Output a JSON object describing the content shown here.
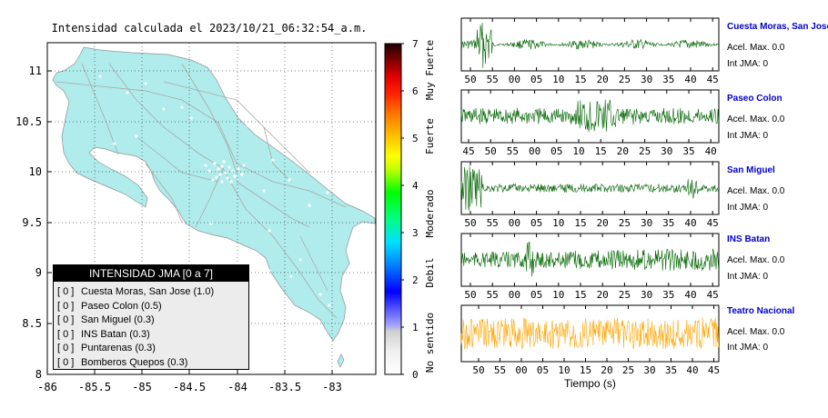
{
  "title": "Intensidad calculada el 2023/10/21_06:32:54_a.m.",
  "map": {
    "lat_ticks": [
      "11",
      "10.5",
      "10",
      "9.5",
      "9",
      "8.5",
      "8"
    ],
    "lon_ticks": [
      "-86",
      "-85.5",
      "-85",
      "-84.5",
      "-84",
      "-83.5",
      "-83"
    ],
    "land_color": "#b0ecec",
    "ocean_color": "#ffffff"
  },
  "legend": {
    "title": "INTENSIDAD JMA [0 a 7]",
    "rows": [
      {
        "value": "[ 0 ]",
        "label": "Cuesta Moras, San Jose (1.0)"
      },
      {
        "value": "[ 0 ]",
        "label": "Paseo Colon (0.5)"
      },
      {
        "value": "[ 0 ]",
        "label": "San Miguel (0.3)"
      },
      {
        "value": "[ 0 ]",
        "label": "INS Batan (0.3)"
      },
      {
        "value": "[ 0 ]",
        "label": "Puntarenas (0.3)"
      },
      {
        "value": "[ 0 ]",
        "label": "Bomberos Quepos (0.3)"
      }
    ]
  },
  "colorbar": {
    "ticks": [
      "7",
      "6",
      "5",
      "4",
      "3",
      "2",
      "1",
      "0"
    ],
    "labels": [
      "Muy Fuerte",
      "Fuerte",
      "Moderado",
      "Debil",
      "No sentido"
    ]
  },
  "stations": [
    {
      "name": "Cuesta Moras, San Jose",
      "acel": "Acel. Max. 0.0",
      "jma": "Int JMA: 0",
      "color": "#006400",
      "xticks": [
        "50",
        "55",
        "00",
        "05",
        "10",
        "15",
        "20",
        "25",
        "30",
        "35",
        "40",
        "45"
      ]
    },
    {
      "name": "Paseo Colon",
      "acel": "Acel. Max. 0.0",
      "jma": "Int JMA: 0",
      "color": "#006400",
      "xticks": [
        "45",
        "50",
        "55",
        "00",
        "05",
        "10",
        "15",
        "20",
        "25",
        "30",
        "35",
        "40"
      ]
    },
    {
      "name": "San Miguel",
      "acel": "Acel. Max. 0.0",
      "jma": "Int JMA: 0",
      "color": "#006400",
      "xticks": [
        "50",
        "55",
        "00",
        "05",
        "10",
        "15",
        "20",
        "25",
        "30",
        "35",
        "40",
        "45"
      ]
    },
    {
      "name": "INS Batan",
      "acel": "Acel. Max. 0.0",
      "jma": "Int JMA: 0",
      "color": "#006400",
      "xticks": [
        "50",
        "55",
        "00",
        "05",
        "10",
        "15",
        "20",
        "25",
        "30",
        "35",
        "40",
        "45"
      ]
    },
    {
      "name": "Teatro Nacional",
      "acel": "Acel. Max. 0.0",
      "jma": "Int JMA: 0",
      "color": "#ffa500",
      "xticks": [
        "50",
        "55",
        "00",
        "05",
        "10",
        "15",
        "20",
        "25",
        "30",
        "35",
        "40",
        "45"
      ]
    }
  ],
  "xlabel": "Tiempo (s)"
}
